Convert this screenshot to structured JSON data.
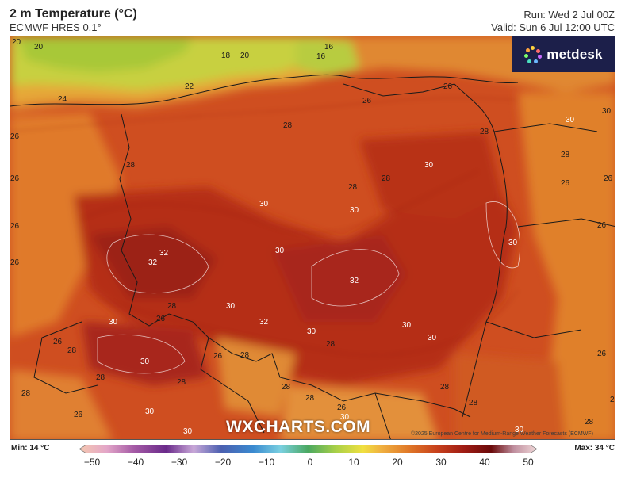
{
  "header": {
    "title": "2 m Temperature (°C)",
    "model": "ECMWF HRES 0.1°",
    "run": "Run: Wed 2 Jul 00Z",
    "valid": "Valid: Sun 6 Jul 12:00 UTC"
  },
  "brand": {
    "name": "metdesk",
    "icon": "metdesk-logo-icon"
  },
  "watermark": "WXCHARTS.COM",
  "copyright": "©2025 European Centre for Medium-Range Weather Forecasts (ECMWF)",
  "legend": {
    "min": "Min: 14 °C",
    "max": "Max: 34 °C",
    "ticks": [
      "−50",
      "−40",
      "−30",
      "−20",
      "−10",
      "0",
      "10",
      "20",
      "30",
      "40",
      "50"
    ],
    "colors": [
      "#f5c8b0",
      "#e3a6c8",
      "#a45aa5",
      "#6a2a8a",
      "#c8a8d8",
      "#4b5fb0",
      "#3a8ad0",
      "#7ad0e0",
      "#4aa860",
      "#a8d048",
      "#f0e040",
      "#f0b040",
      "#e07828",
      "#c8421c",
      "#a01c14",
      "#6a0a0a",
      "#c090a0",
      "#f0d8d8"
    ]
  },
  "map": {
    "contour_labels": [
      "20",
      "20",
      "16",
      "16",
      "18",
      "20",
      "22",
      "24",
      "26",
      "26",
      "28",
      "28",
      "26",
      "26",
      "28",
      "28",
      "28",
      "30",
      "30",
      "30",
      "30",
      "32",
      "32",
      "30",
      "30",
      "32",
      "30",
      "28",
      "30",
      "32",
      "30",
      "30",
      "30",
      "28",
      "26",
      "26",
      "26",
      "26",
      "28",
      "28",
      "28",
      "26",
      "28",
      "26",
      "28",
      "30",
      "30",
      "28",
      "28",
      "26",
      "30",
      "28",
      "28",
      "30",
      "26",
      "28",
      "26",
      "26",
      "30",
      "30",
      "28",
      "28",
      "26"
    ]
  }
}
